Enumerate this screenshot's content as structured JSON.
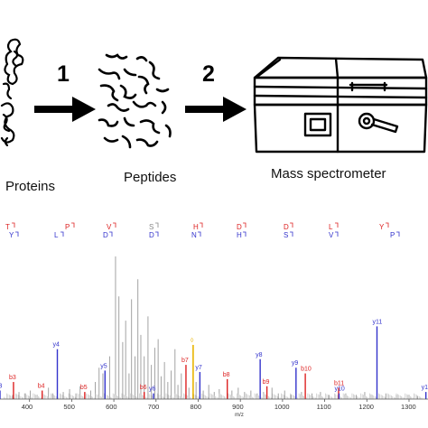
{
  "workflow": {
    "step1_number": "1",
    "step2_number": "2",
    "proteins_label": "Proteins",
    "peptides_label": "Peptides",
    "mass_spec_label": "Mass spectrometer"
  },
  "sequence": {
    "top": [
      {
        "letter": "T",
        "color": "#d22"
      },
      {
        "letter": "P",
        "color": "#d22"
      },
      {
        "letter": "V",
        "color": "#d22"
      },
      {
        "letter": "S",
        "color": "#888"
      },
      {
        "letter": "H",
        "color": "#d22"
      },
      {
        "letter": "D",
        "color": "#d22"
      },
      {
        "letter": "D",
        "color": "#d22"
      },
      {
        "letter": "L",
        "color": "#d22"
      },
      {
        "letter": "Y",
        "color": "#d22"
      }
    ],
    "bottom": [
      {
        "letter": "Y",
        "color": "#33c"
      },
      {
        "letter": "L",
        "color": "#33c"
      },
      {
        "letter": "D",
        "color": "#33c"
      },
      {
        "letter": "D",
        "color": "#33c"
      },
      {
        "letter": "N",
        "color": "#33c"
      },
      {
        "letter": "H",
        "color": "#33c"
      },
      {
        "letter": "S",
        "color": "#33c"
      },
      {
        "letter": "V",
        "color": "#33c"
      },
      {
        "letter": "P",
        "color": "#33c"
      }
    ]
  },
  "chart_data": {
    "type": "bar",
    "xlabel": "m/z",
    "xlim": [
      330,
      1345
    ],
    "ylim": [
      0,
      100
    ],
    "x_ticks": [
      400,
      500,
      600,
      700,
      800,
      900,
      1000,
      1100,
      1200,
      1300
    ],
    "colors": {
      "b_ion": "#d22",
      "y_ion": "#33c",
      "other": "#999",
      "precursor": "#e8b400"
    },
    "b_ions": [
      {
        "label": "b3",
        "mz": 362,
        "intensity": 12
      },
      {
        "label": "b4",
        "mz": 430,
        "intensity": 6
      },
      {
        "label": "b5",
        "mz": 531,
        "intensity": 5
      },
      {
        "label": "b6",
        "mz": 672,
        "intensity": 5
      },
      {
        "label": "b7",
        "mz": 771,
        "intensity": 24
      },
      {
        "label": "b8",
        "mz": 869,
        "intensity": 14
      },
      {
        "label": "b9",
        "mz": 963,
        "intensity": 9
      },
      {
        "label": "b10",
        "mz": 1054,
        "intensity": 18
      },
      {
        "label": "b11",
        "mz": 1133,
        "intensity": 8
      }
    ],
    "y_ions": [
      {
        "label": "y3",
        "mz": 330,
        "intensity": 6
      },
      {
        "label": "y4",
        "mz": 466,
        "intensity": 35
      },
      {
        "label": "y5",
        "mz": 579,
        "intensity": 20
      },
      {
        "label": "y6",
        "mz": 694,
        "intensity": 4
      },
      {
        "label": "y7",
        "mz": 804,
        "intensity": 19
      },
      {
        "label": "y8",
        "mz": 947,
        "intensity": 28
      },
      {
        "label": "y9",
        "mz": 1032,
        "intensity": 22
      },
      {
        "label": "y10",
        "mz": 1134,
        "intensity": 4
      },
      {
        "label": "y11",
        "mz": 1224,
        "intensity": 51
      },
      {
        "label": "y12",
        "mz": 1340,
        "intensity": 5
      }
    ],
    "precursor_label": "◊",
    "precursor": {
      "mz": 788,
      "intensity": 38
    },
    "other_peaks": [
      [
        360,
        3
      ],
      [
        375,
        5
      ],
      [
        390,
        4
      ],
      [
        402,
        6
      ],
      [
        418,
        3
      ],
      [
        445,
        8
      ],
      [
        455,
        4
      ],
      [
        480,
        5
      ],
      [
        495,
        7
      ],
      [
        510,
        4
      ],
      [
        520,
        9
      ],
      [
        545,
        6
      ],
      [
        556,
        12
      ],
      [
        565,
        22
      ],
      [
        574,
        18
      ],
      [
        590,
        30
      ],
      [
        604,
        100
      ],
      [
        612,
        72
      ],
      [
        621,
        40
      ],
      [
        628,
        55
      ],
      [
        636,
        18
      ],
      [
        642,
        70
      ],
      [
        650,
        30
      ],
      [
        657,
        84
      ],
      [
        664,
        45
      ],
      [
        672,
        30
      ],
      [
        681,
        58
      ],
      [
        689,
        24
      ],
      [
        697,
        36
      ],
      [
        705,
        42
      ],
      [
        712,
        16
      ],
      [
        720,
        26
      ],
      [
        728,
        12
      ],
      [
        736,
        20
      ],
      [
        745,
        35
      ],
      [
        752,
        10
      ],
      [
        760,
        18
      ],
      [
        778,
        8
      ],
      [
        795,
        12
      ],
      [
        812,
        6
      ],
      [
        825,
        10
      ],
      [
        838,
        5
      ],
      [
        850,
        7
      ],
      [
        880,
        6
      ],
      [
        895,
        8
      ],
      [
        910,
        5
      ],
      [
        925,
        6
      ],
      [
        940,
        4
      ],
      [
        955,
        5
      ],
      [
        975,
        8
      ],
      [
        990,
        4
      ],
      [
        1005,
        6
      ],
      [
        1020,
        3
      ],
      [
        1045,
        5
      ],
      [
        1070,
        4
      ],
      [
        1090,
        5
      ],
      [
        1110,
        3
      ],
      [
        1150,
        4
      ],
      [
        1175,
        3
      ],
      [
        1195,
        5
      ],
      [
        1210,
        3
      ],
      [
        1245,
        4
      ],
      [
        1270,
        3
      ],
      [
        1300,
        3
      ],
      [
        1320,
        2
      ]
    ]
  }
}
